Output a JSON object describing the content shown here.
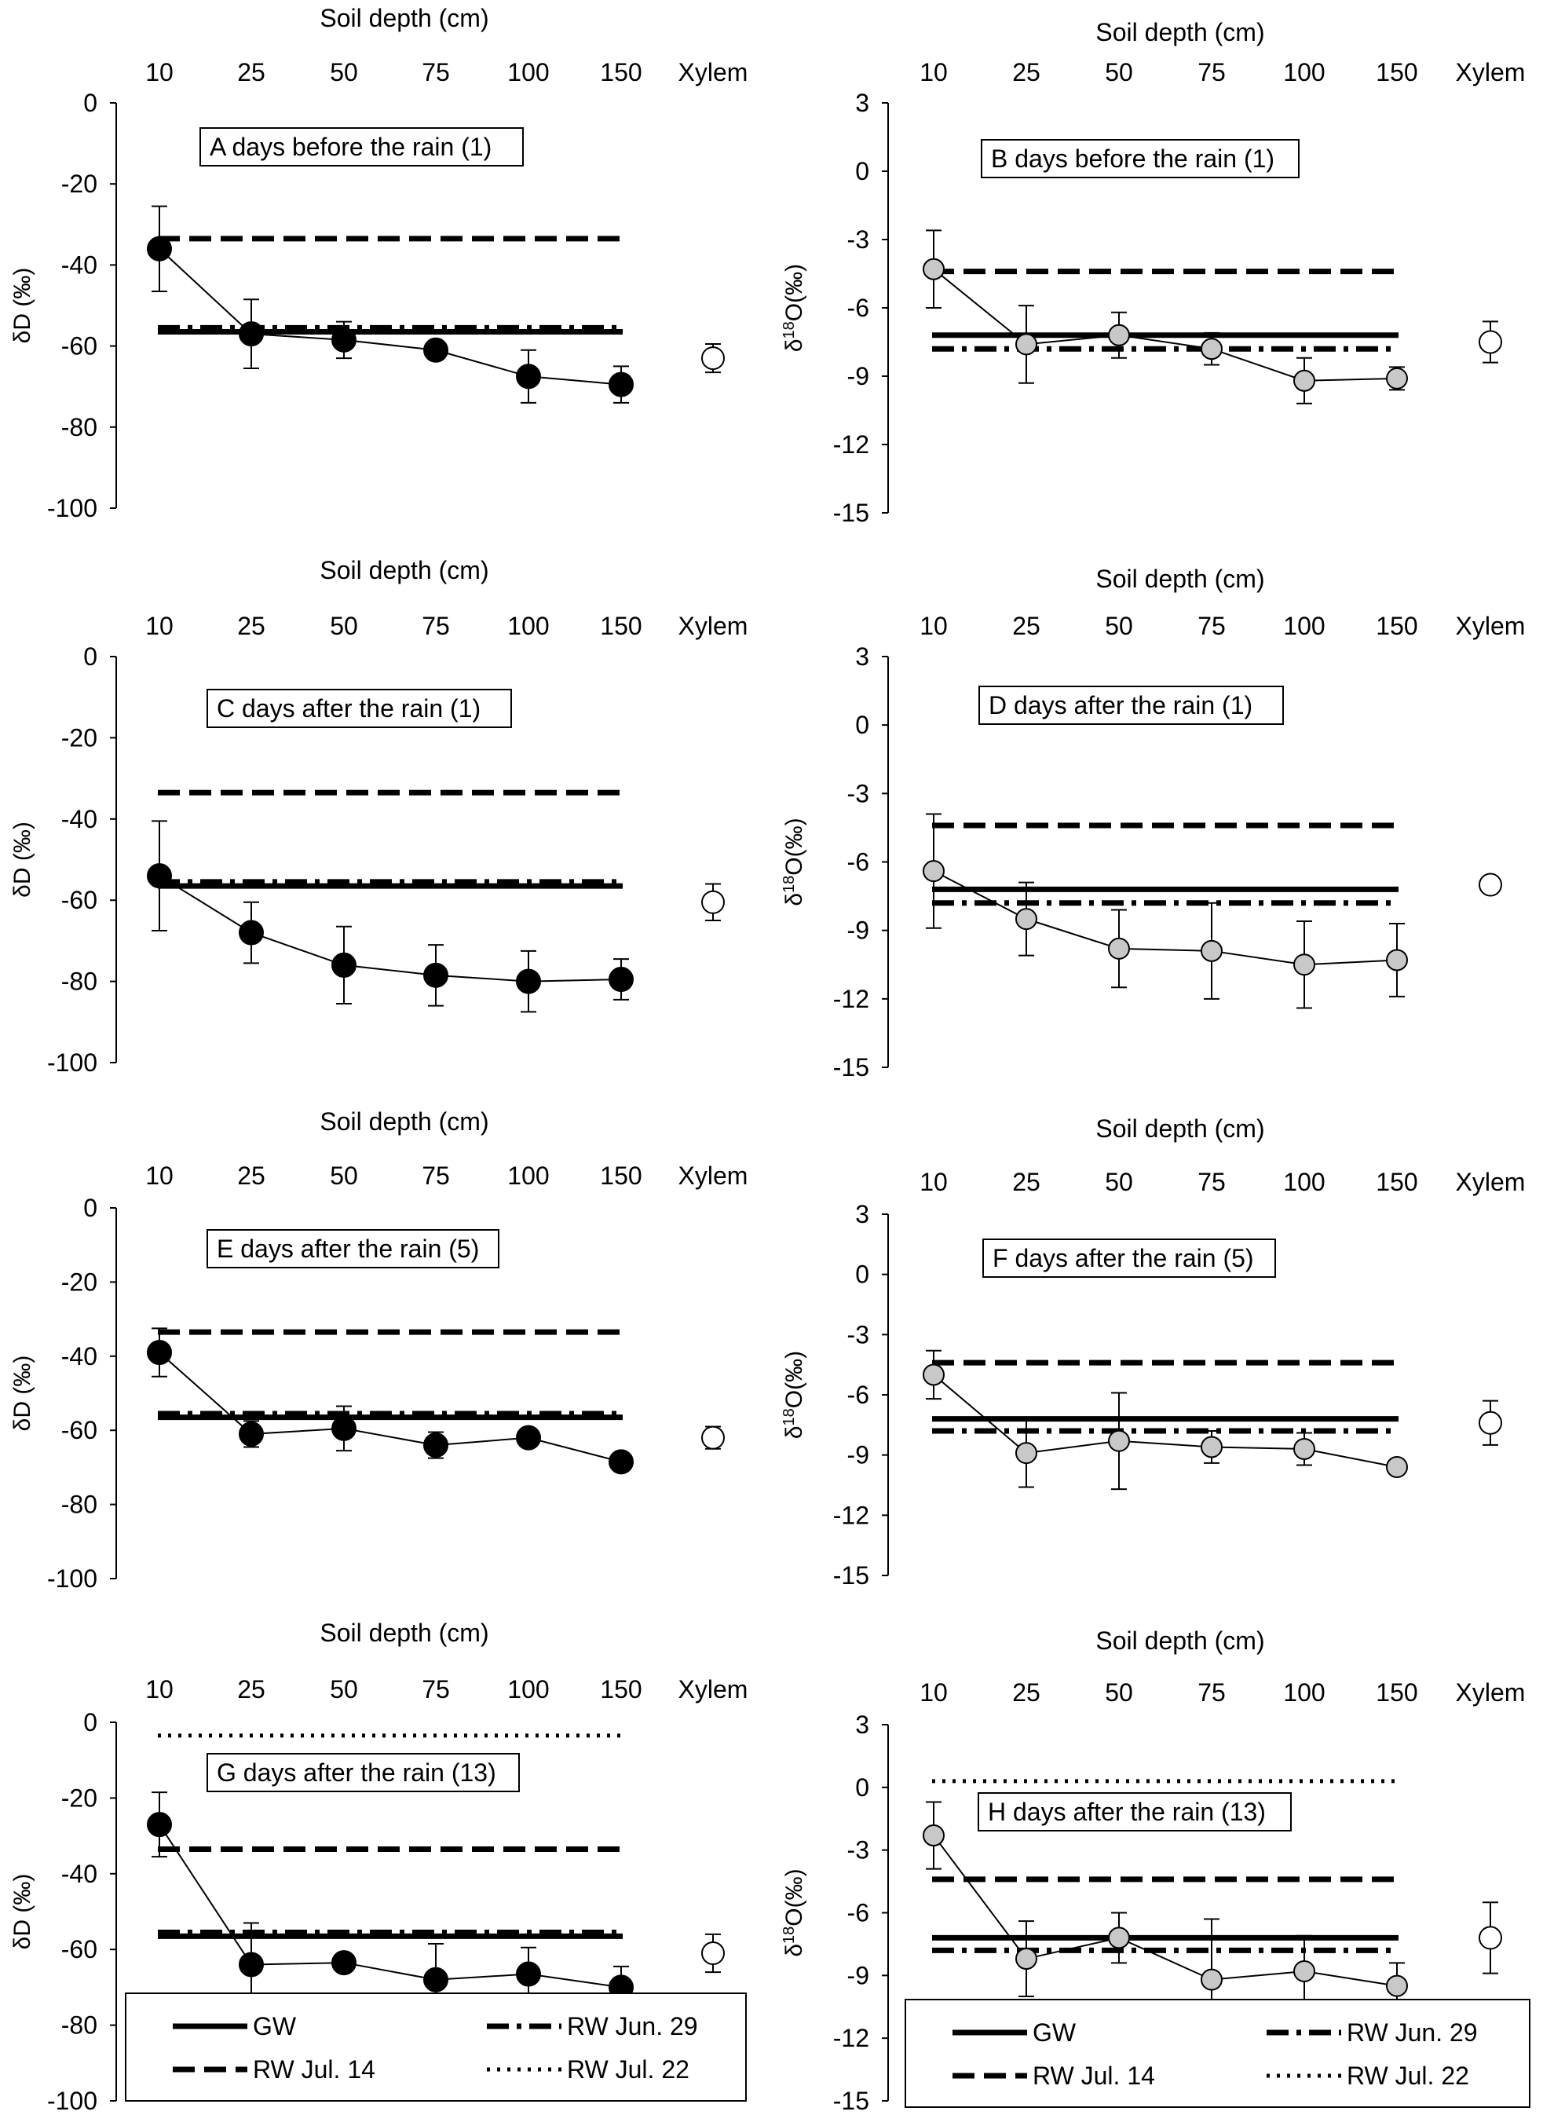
{
  "figure": {
    "categories": [
      "10",
      "25",
      "50",
      "75",
      "100",
      "150",
      "Xylem"
    ],
    "soil_axis_label": "Soil depth (cm)",
    "legend": {
      "gw": "GW",
      "rw_jun29": "RW Jun. 29",
      "rw_jul14": "RW Jul. 14",
      "rw_jul22": "RW Jul. 22"
    }
  },
  "chart_data": [
    {
      "id": "A",
      "type": "line",
      "panel_label": "A days before the rain (1)",
      "isotope": "D",
      "ylabel": "δD (‰)",
      "ylim": [
        -100,
        0
      ],
      "yticks": [
        0,
        -20,
        -40,
        -60,
        -80,
        -100
      ],
      "tick_labels": [
        "0",
        "-20",
        "-40",
        "-60",
        "-80",
        "-100"
      ],
      "marker_fill": "#000000",
      "soil": {
        "values": [
          -36,
          -57,
          -58.5,
          -61,
          -67.5,
          -69.5
        ],
        "errors": [
          10.5,
          8.5,
          4.5,
          1.5,
          6.5,
          4.5
        ]
      },
      "xylem": {
        "value": -63,
        "error": 3.5
      },
      "reference_lines": {
        "gw": -56.5,
        "rw_jun29": -55.5,
        "rw_jul14": -33.5
      }
    },
    {
      "id": "B",
      "type": "line",
      "panel_label": "B days before the rain (1)",
      "isotope": "O",
      "ylim": [
        -15,
        3
      ],
      "yticks": [
        3,
        0,
        -3,
        -6,
        -9,
        -12,
        -15
      ],
      "tick_labels": [
        "3",
        "0",
        "-3",
        "-6",
        "-9",
        "-12",
        "-15"
      ],
      "marker_fill": "#c8c8c8",
      "soil": {
        "values": [
          -4.3,
          -7.6,
          -7.2,
          -7.8,
          -9.2,
          -9.1
        ],
        "errors": [
          1.7,
          1.7,
          1.0,
          0.7,
          1.0,
          0.5
        ]
      },
      "xylem": {
        "value": -7.5,
        "error": 0.9
      },
      "reference_lines": {
        "gw": -7.2,
        "rw_jun29": -7.8,
        "rw_jul14": -4.4
      }
    },
    {
      "id": "C",
      "type": "line",
      "panel_label": "C days  after the rain (1)",
      "isotope": "D",
      "ylabel": "δD (‰)",
      "ylim": [
        -100,
        0
      ],
      "yticks": [
        0,
        -20,
        -40,
        -60,
        -80,
        -100
      ],
      "tick_labels": [
        "0",
        "-20",
        "-40",
        "-60",
        "-80",
        "-100"
      ],
      "marker_fill": "#000000",
      "soil": {
        "values": [
          -54,
          -68,
          -76,
          -78.5,
          -80,
          -79.5
        ],
        "errors": [
          13.5,
          7.5,
          9.5,
          7.5,
          7.5,
          5
        ]
      },
      "xylem": {
        "value": -60.5,
        "error": 4.5
      },
      "reference_lines": {
        "gw": -56.5,
        "rw_jun29": -55.5,
        "rw_jul14": -33.5
      }
    },
    {
      "id": "D",
      "type": "line",
      "panel_label": "D days after the rain (1)",
      "isotope": "O",
      "ylim": [
        -15,
        3
      ],
      "yticks": [
        3,
        0,
        -3,
        -6,
        -9,
        -12,
        -15
      ],
      "tick_labels": [
        "3",
        "0",
        "-3",
        "-6",
        "-9",
        "-12",
        "-15"
      ],
      "marker_fill": "#c8c8c8",
      "soil": {
        "values": [
          -6.4,
          -8.5,
          -9.8,
          -9.9,
          -10.5,
          -10.3
        ],
        "errors": [
          2.5,
          1.6,
          1.7,
          2.1,
          1.9,
          1.6
        ]
      },
      "xylem": {
        "value": -7.0,
        "error": 0.3
      },
      "reference_lines": {
        "gw": -7.2,
        "rw_jun29": -7.8,
        "rw_jul14": -4.4
      }
    },
    {
      "id": "E",
      "type": "line",
      "panel_label": "E days after the rain (5)",
      "isotope": "D",
      "ylabel": "δD (‰)",
      "ylim": [
        -100,
        0
      ],
      "yticks": [
        0,
        -20,
        -40,
        -60,
        -80,
        -100
      ],
      "tick_labels": [
        "0",
        "-20",
        "-40",
        "-60",
        "-80",
        "-100"
      ],
      "marker_fill": "#000000",
      "soil": {
        "values": [
          -39,
          -61,
          -59.5,
          -64,
          -62,
          -68.5
        ],
        "errors": [
          6.5,
          3.5,
          6,
          3.5,
          1.5,
          2
        ]
      },
      "xylem": {
        "value": -62,
        "error": 3
      },
      "reference_lines": {
        "gw": -56.5,
        "rw_jun29": -55.5,
        "rw_jul14": -33.5
      }
    },
    {
      "id": "F",
      "type": "line",
      "panel_label": "F days after the rain (5)",
      "isotope": "O",
      "ylim": [
        -15,
        3
      ],
      "yticks": [
        3,
        0,
        -3,
        -6,
        -9,
        -12,
        -15
      ],
      "tick_labels": [
        "3",
        "0",
        "-3",
        "-6",
        "-9",
        "-12",
        "-15"
      ],
      "marker_fill": "#c8c8c8",
      "soil": {
        "values": [
          -5.0,
          -8.9,
          -8.3,
          -8.6,
          -8.7,
          -9.6
        ],
        "errors": [
          1.2,
          1.7,
          2.4,
          0.8,
          0.8,
          0.3
        ]
      },
      "xylem": {
        "value": -7.4,
        "error": 1.1
      },
      "reference_lines": {
        "gw": -7.2,
        "rw_jun29": -7.8,
        "rw_jul14": -4.4
      }
    },
    {
      "id": "G",
      "type": "line",
      "panel_label": "G days after the rain (13)",
      "isotope": "D",
      "ylabel": "δD (‰)",
      "ylim": [
        -100,
        0
      ],
      "yticks": [
        0,
        -20,
        -40,
        -60,
        -80,
        -100
      ],
      "tick_labels": [
        "0",
        "-20",
        "-40",
        "-60",
        "-80",
        "-100"
      ],
      "marker_fill": "#000000",
      "soil": {
        "values": [
          -27,
          -64,
          -63.5,
          -68,
          -66.5,
          -70
        ],
        "errors": [
          8.5,
          11,
          1,
          9.5,
          7,
          5.5
        ]
      },
      "xylem": {
        "value": -61,
        "error": 5
      },
      "reference_lines": {
        "gw": -56.5,
        "rw_jun29": -55.5,
        "rw_jul14": -33.5,
        "rw_jul22": -3.5
      }
    },
    {
      "id": "H",
      "type": "line",
      "panel_label": "H days after the rain (13)",
      "isotope": "O",
      "ylim": [
        -15,
        3
      ],
      "yticks": [
        3,
        0,
        -3,
        -6,
        -9,
        -12,
        -15
      ],
      "tick_labels": [
        "3",
        "0",
        "-3",
        "-6",
        "-9",
        "-12",
        "-15"
      ],
      "marker_fill": "#c8c8c8",
      "soil": {
        "values": [
          -2.3,
          -8.2,
          -7.2,
          -9.2,
          -8.8,
          -9.5
        ],
        "errors": [
          1.6,
          1.8,
          1.2,
          2.9,
          1.7,
          1.1
        ]
      },
      "xylem": {
        "value": -7.2,
        "error": 1.7
      },
      "reference_lines": {
        "gw": -7.2,
        "rw_jun29": -7.8,
        "rw_jul14": -4.4,
        "rw_jul22": 0.3
      }
    }
  ]
}
